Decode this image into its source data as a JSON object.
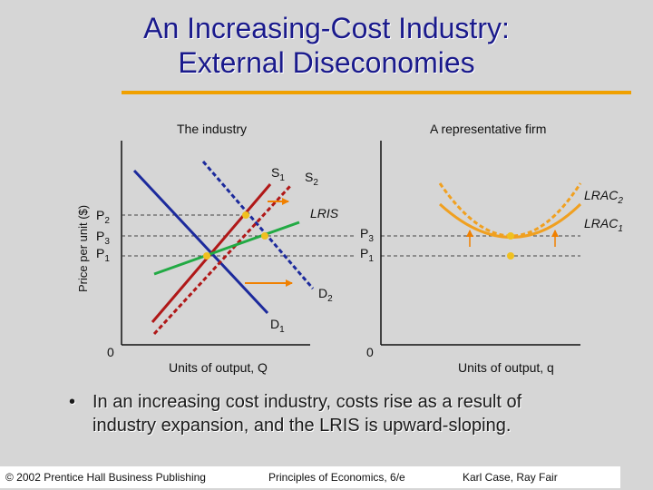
{
  "title": {
    "line1": "An Increasing-Cost Industry:",
    "line2": "External Diseconomies"
  },
  "colors": {
    "title": "#1a1a8c",
    "title_rule": "#f0a000",
    "supply": "#b01818",
    "demand": "#1c2a9c",
    "lris": "#22aa44",
    "lrac": "#f0a020",
    "points": "#f0c020",
    "shift_arrows": "#f08000"
  },
  "industry": {
    "panel_title": "The industry",
    "ylabel": "Price per unit ($)",
    "xlabel": "Units of output, Q",
    "origin": "0",
    "price_labels": {
      "p2": "P",
      "p2_sub": "2",
      "p3": "P",
      "p3_sub": "3",
      "p1": "P",
      "p1_sub": "1"
    },
    "curves": {
      "s1": "S",
      "s1_sub": "1",
      "s2": "S",
      "s2_sub": "2",
      "d1": "D",
      "d1_sub": "1",
      "d2": "D",
      "d2_sub": "2",
      "lris": "LRIS"
    }
  },
  "firm": {
    "panel_title": "A representative firm",
    "xlabel": "Units of output, q",
    "origin": "0",
    "price_labels": {
      "p3": "P",
      "p3_sub": "3",
      "p1": "P",
      "p1_sub": "1"
    },
    "curves": {
      "lrac2": "LRAC",
      "lrac2_sub": "2",
      "lrac1": "LRAC",
      "lrac1_sub": "1"
    }
  },
  "bullet": {
    "marker": "•",
    "text": "In an increasing cost industry, costs rise as a result of industry expansion, and the LRIS is upward-sloping."
  },
  "footer": {
    "copyright": "© 2002 Prentice Hall Business Publishing",
    "book": "Principles of Economics, 6/e",
    "authors": "Karl Case, Ray Fair"
  }
}
